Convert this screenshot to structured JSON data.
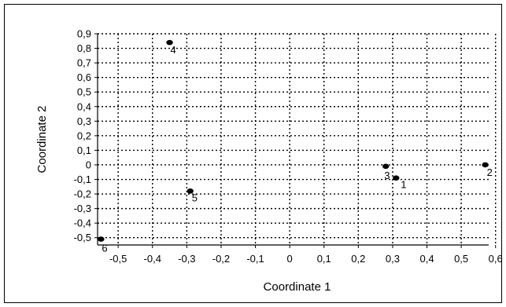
{
  "chart_data": {
    "type": "scatter",
    "title": "",
    "xlabel": "Coordinate 1",
    "ylabel": "Coordinate 2",
    "xlim": [
      -0.56,
      0.58
    ],
    "ylim": [
      -0.55,
      0.9
    ],
    "grid": true,
    "x_ticks": [
      -0.5,
      -0.4,
      -0.3,
      -0.2,
      -0.1,
      0,
      0.1,
      0.2,
      0.3,
      0.4,
      0.5,
      0.6
    ],
    "x_tick_labels": [
      "-0,5",
      "-0,4",
      "-0,3",
      "-0,2",
      "-0,1",
      "0",
      "0,1",
      "0,2",
      "0,3",
      "0,4",
      "0,5",
      "0,6"
    ],
    "y_ticks": [
      0.9,
      0.8,
      0.7,
      0.6,
      0.5,
      0.4,
      0.3,
      0.2,
      0.1,
      0,
      -0.1,
      -0.2,
      -0.3,
      -0.4,
      -0.5
    ],
    "y_tick_labels": [
      "0,9",
      "0,8",
      "0,7",
      "0,6",
      "0,5",
      "0,4",
      "0,3",
      "0,2",
      "0,1",
      "0",
      "-0,1",
      "-0,2",
      "-0,3",
      "-0,4",
      "-0,5"
    ],
    "points": [
      {
        "label": "1",
        "x": 0.31,
        "y": -0.09
      },
      {
        "label": "2",
        "x": 0.57,
        "y": 0.0
      },
      {
        "label": "3",
        "x": 0.28,
        "y": -0.01
      },
      {
        "label": "4",
        "x": -0.35,
        "y": 0.84
      },
      {
        "label": "5",
        "x": -0.29,
        "y": -0.18
      },
      {
        "label": "6",
        "x": -0.55,
        "y": -0.51
      }
    ]
  },
  "colors": {
    "marker": "#000000",
    "grid": "#000000",
    "frame": "#000000"
  }
}
